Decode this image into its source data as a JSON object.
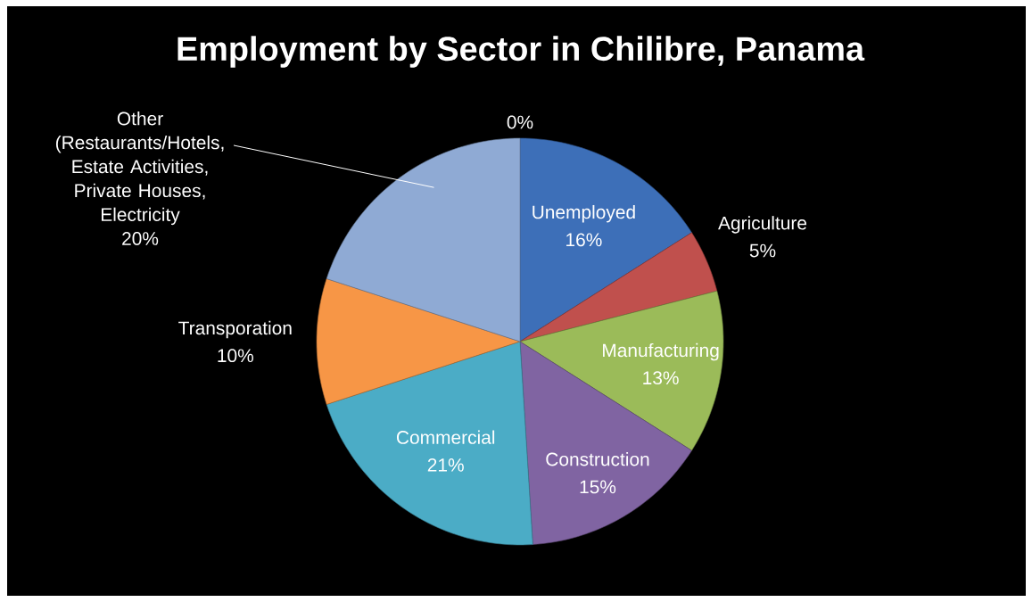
{
  "chart_data": {
    "type": "pie",
    "title": "Employment by Sector in Chilibre, Panama",
    "categories": [
      "Unemployed",
      "Agriculture",
      "Manufacturing",
      "Construction",
      "Commercial",
      "Transporation",
      "Other (Restaurants/Hotels, Estate Activities, Private Houses, Electricity",
      null
    ],
    "values": [
      16,
      5,
      13,
      15,
      21,
      10,
      20,
      0
    ],
    "value_labels": [
      "16%",
      "5%",
      "13%",
      "15%",
      "21%",
      "10%",
      "20%",
      "0%"
    ],
    "colors": [
      "#3d6fb8",
      "#c0504d",
      "#9bbb59",
      "#8064a2",
      "#4bacc6",
      "#f79646",
      "#8faad4",
      "#2c4d75"
    ]
  }
}
